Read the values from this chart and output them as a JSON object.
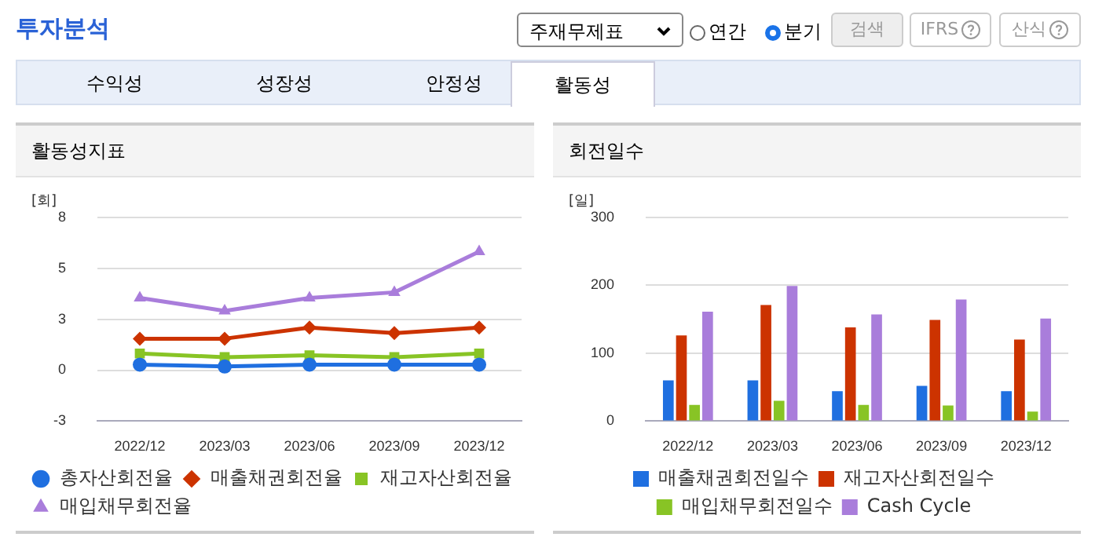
{
  "chart_data": [
    {
      "type": "other",
      "title": "투자분석",
      "annotations": [
        "주재무제표",
        "연간",
        "분기",
        "검색",
        "IFRS",
        "산식",
        "수익성",
        "성장성",
        "안정성",
        "활동성"
      ]
    },
    {
      "type": "line",
      "title": "활동성지표",
      "ylabel": "[회]",
      "categories": [
        "2022/12",
        "2023/03",
        "2023/06",
        "2023/09",
        "2023/12"
      ],
      "ylim": [
        -2.75,
        8.25
      ],
      "yticks": [
        {
          "value": -2.75,
          "label": "-3"
        },
        0,
        {
          "value": 2.75,
          "label": "3"
        },
        {
          "value": 5.5,
          "label": "5"
        },
        {
          "value": 8.25,
          "label": "8"
        }
      ],
      "grid": "y",
      "legend": "bottom",
      "series": [
        {
          "name": "총자산회전율",
          "color": "#1f6fe0",
          "marker": "circle",
          "values": [
            0.3,
            0.2,
            0.3,
            0.3,
            0.3
          ]
        },
        {
          "name": "매출채권회전율",
          "color": "#cc3300",
          "marker": "diamond",
          "values": [
            1.7,
            1.7,
            2.3,
            2.0,
            2.3
          ]
        },
        {
          "name": "재고자산회전율",
          "color": "#88c425",
          "marker": "square",
          "values": [
            0.9,
            0.7,
            0.8,
            0.7,
            0.9
          ]
        },
        {
          "name": "매입채무회전율",
          "color": "#a97ddb",
          "marker": "triangle",
          "values": [
            3.9,
            3.2,
            3.9,
            4.2,
            6.4
          ]
        }
      ]
    },
    {
      "type": "bar",
      "title": "회전일수",
      "ylabel": "[일]",
      "categories": [
        "2022/12",
        "2023/03",
        "2023/06",
        "2023/09",
        "2023/12"
      ],
      "ylim": [
        0,
        300
      ],
      "yticks": [
        0,
        100,
        200,
        300
      ],
      "grid": "y",
      "legend": "bottom",
      "series": [
        {
          "name": "매출채권회전일수",
          "color": "#1f6fe0",
          "values": [
            60,
            60,
            44,
            52,
            44
          ]
        },
        {
          "name": "재고자산회전일수",
          "color": "#cc3300",
          "values": [
            126,
            171,
            138,
            149,
            120
          ]
        },
        {
          "name": "매입채무회전일수",
          "color": "#88c425",
          "values": [
            24,
            30,
            24,
            23,
            14
          ]
        },
        {
          "name": "Cash Cycle",
          "color": "#a97ddb",
          "values": [
            161,
            199,
            157,
            179,
            151
          ]
        }
      ]
    }
  ]
}
